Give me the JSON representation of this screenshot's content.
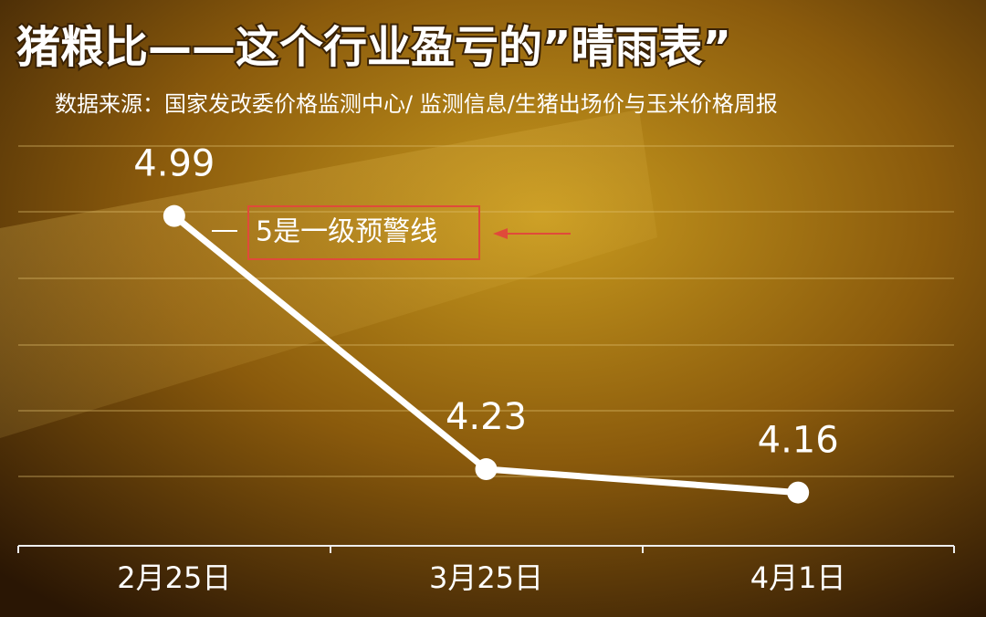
{
  "chart_data": {
    "type": "line",
    "title": "猪粮比——这个行业盈亏的”晴雨表”",
    "subtitle": "数据来源：国家发改委价格监测中心/   监测信息/生猪出场价与玉米价格周报",
    "annotation": "5是一级预警线",
    "categories": [
      "2月25日",
      "3月25日",
      "4月1日"
    ],
    "values": [
      4.99,
      4.23,
      4.16
    ],
    "color": "#ffffff",
    "ylim": [
      4.0,
      5.2
    ]
  }
}
